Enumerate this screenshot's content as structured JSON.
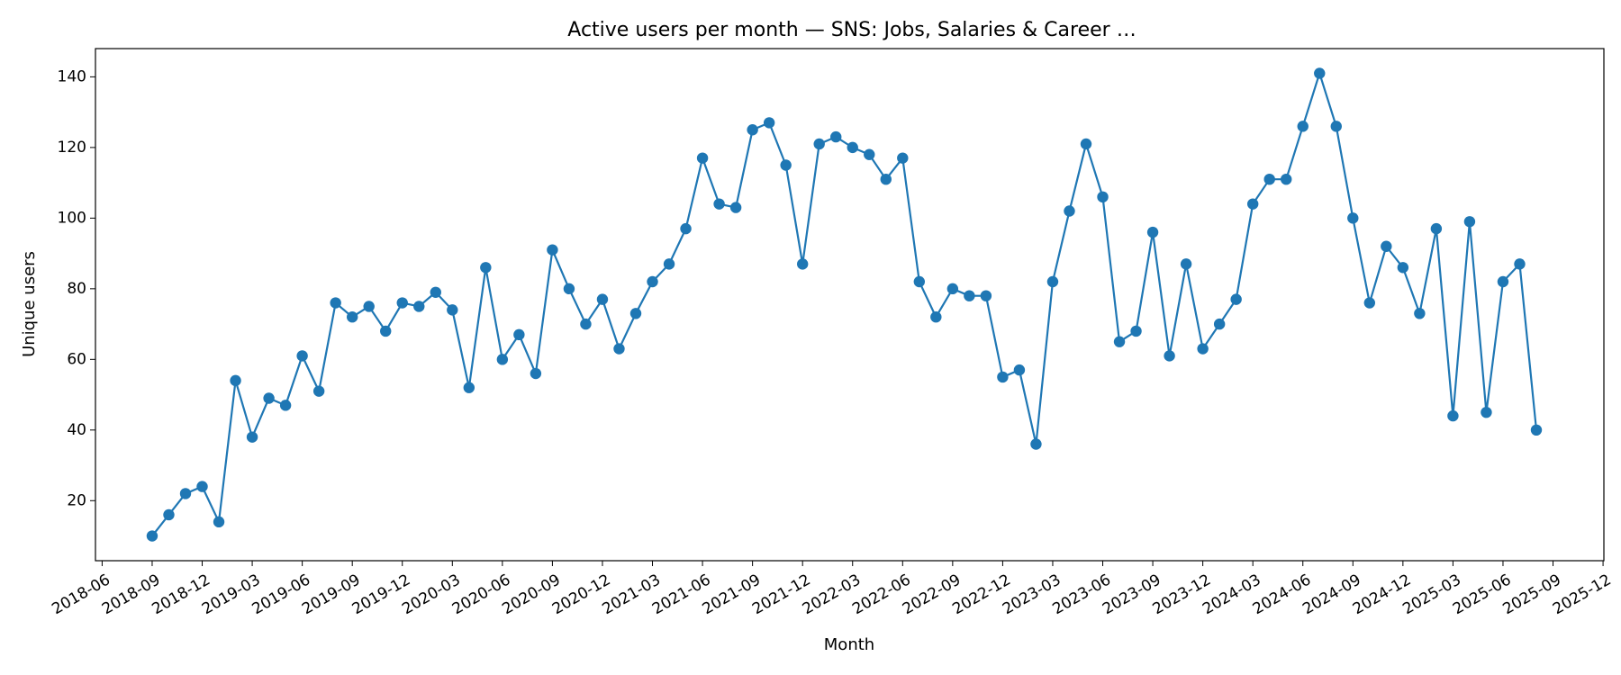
{
  "chart_data": {
    "type": "line",
    "title": "Active users per month — SNS: Jobs, Salaries & Career …",
    "xlabel": "Month",
    "ylabel": "Unique users",
    "x_ticks": [
      "2018-06",
      "2018-09",
      "2018-12",
      "2019-03",
      "2019-06",
      "2019-09",
      "2019-12",
      "2020-03",
      "2020-06",
      "2020-09",
      "2020-12",
      "2021-03",
      "2021-06",
      "2021-09",
      "2021-12",
      "2022-03",
      "2022-06",
      "2022-09",
      "2022-12",
      "2023-03",
      "2023-06",
      "2023-09",
      "2023-12",
      "2024-03",
      "2024-06",
      "2024-09",
      "2024-12",
      "2025-03",
      "2025-06",
      "2025-09",
      "2025-12"
    ],
    "y_ticks": [
      20,
      40,
      60,
      80,
      100,
      120,
      140
    ],
    "ylim": [
      3,
      148
    ],
    "xlim": [
      "2018-06",
      "2025-12"
    ],
    "color": "#1f77b4",
    "marker": "circle",
    "grid": false,
    "series": [
      {
        "x": [
          "2018-09",
          "2018-10",
          "2018-11",
          "2018-12",
          "2019-01",
          "2019-02",
          "2019-03",
          "2019-04",
          "2019-05",
          "2019-06",
          "2019-07",
          "2019-08",
          "2019-09",
          "2019-10",
          "2019-11",
          "2019-12",
          "2020-01",
          "2020-02",
          "2020-03",
          "2020-04",
          "2020-05",
          "2020-06",
          "2020-07",
          "2020-08",
          "2020-09",
          "2020-10",
          "2020-11",
          "2020-12",
          "2021-01",
          "2021-02",
          "2021-03",
          "2021-04",
          "2021-05",
          "2021-06",
          "2021-07",
          "2021-08",
          "2021-09",
          "2021-10",
          "2021-11",
          "2021-12",
          "2022-01",
          "2022-02",
          "2022-03",
          "2022-04",
          "2022-05",
          "2022-06",
          "2022-07",
          "2022-08",
          "2022-09",
          "2022-10",
          "2022-11",
          "2022-12",
          "2023-01",
          "2023-02",
          "2023-03",
          "2023-04",
          "2023-05",
          "2023-06",
          "2023-07",
          "2023-08",
          "2023-09",
          "2023-10",
          "2023-11",
          "2023-12",
          "2024-01",
          "2024-02",
          "2024-03",
          "2024-04",
          "2024-05",
          "2024-06",
          "2024-07",
          "2024-08",
          "2024-09",
          "2024-10",
          "2024-11",
          "2024-12",
          "2025-01",
          "2025-02",
          "2025-03",
          "2025-04",
          "2025-05",
          "2025-06",
          "2025-07",
          "2025-08"
        ],
        "values": [
          10,
          16,
          22,
          24,
          14,
          54,
          38,
          49,
          47,
          61,
          51,
          76,
          72,
          75,
          68,
          76,
          75,
          79,
          74,
          52,
          86,
          60,
          67,
          56,
          91,
          80,
          70,
          77,
          63,
          73,
          82,
          87,
          97,
          117,
          104,
          103,
          125,
          127,
          115,
          87,
          121,
          123,
          120,
          118,
          111,
          117,
          82,
          72,
          80,
          78,
          78,
          55,
          57,
          36,
          82,
          102,
          121,
          106,
          65,
          68,
          96,
          61,
          87,
          63,
          70,
          77,
          104,
          111,
          111,
          126,
          141,
          126,
          100,
          76,
          92,
          86,
          73,
          97,
          44,
          99,
          45,
          82,
          87,
          40
        ]
      }
    ]
  }
}
